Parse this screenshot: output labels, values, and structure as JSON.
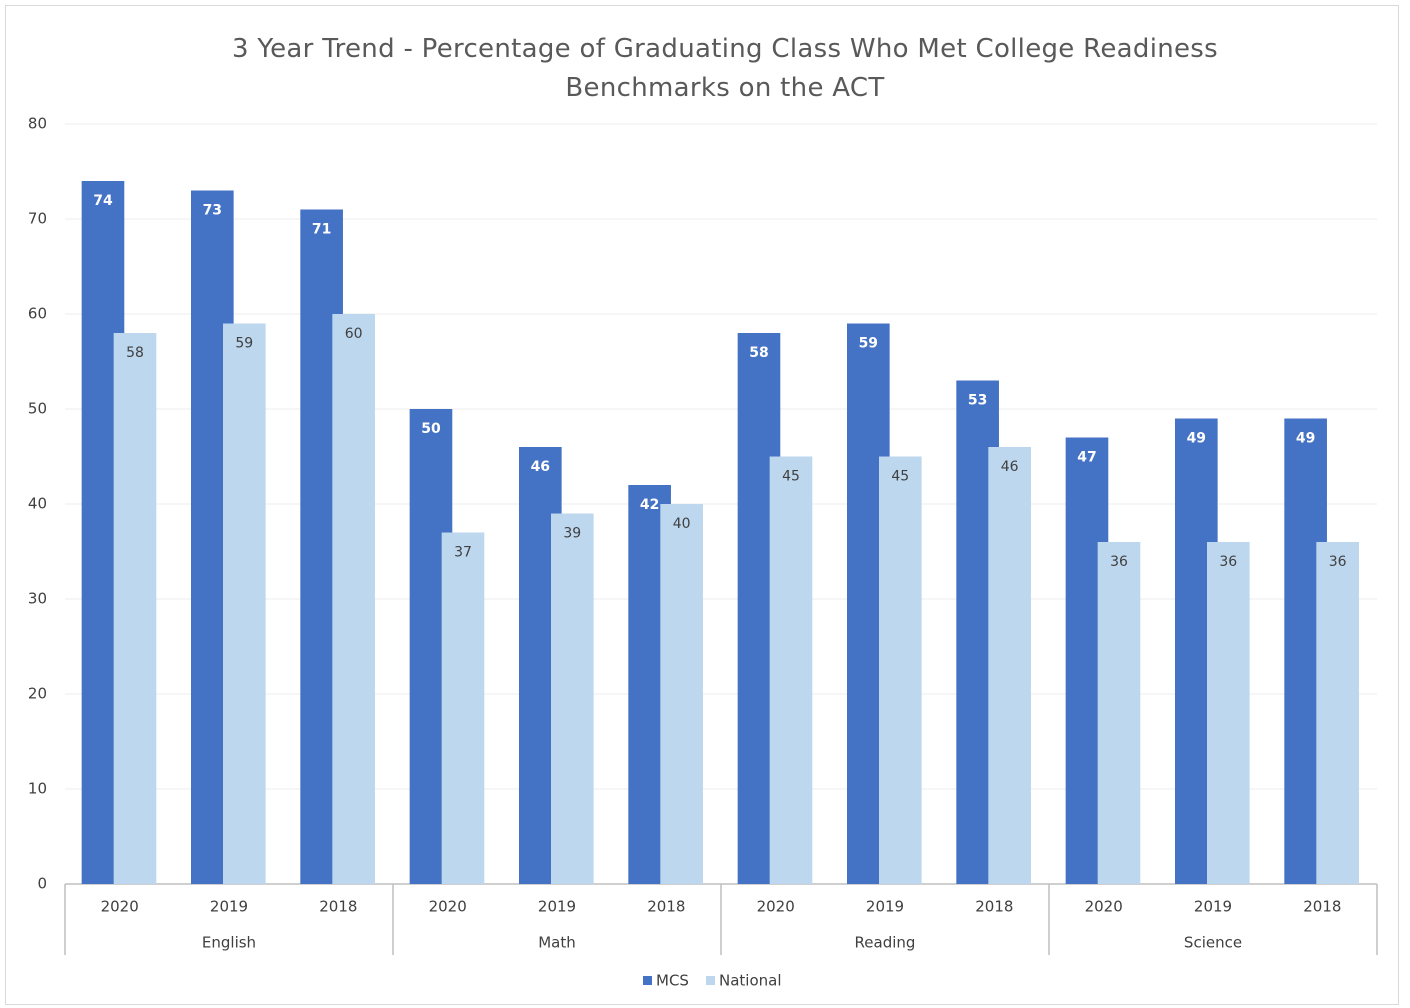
{
  "chart_data": {
    "type": "bar",
    "title": "3 Year Trend - Percentage of Graduating Class Who Met College Readiness Benchmarks on the ACT",
    "groups": [
      {
        "name": "English",
        "categories": [
          "2020",
          "2019",
          "2018"
        ]
      },
      {
        "name": "Math",
        "categories": [
          "2020",
          "2019",
          "2018"
        ]
      },
      {
        "name": "Reading",
        "categories": [
          "2020",
          "2019",
          "2018"
        ]
      },
      {
        "name": "Science",
        "categories": [
          "2020",
          "2019",
          "2018"
        ]
      }
    ],
    "series": [
      {
        "name": "MCS",
        "color": "#4472c4",
        "values": [
          74,
          73,
          71,
          50,
          46,
          42,
          58,
          59,
          53,
          47,
          49,
          49
        ]
      },
      {
        "name": "National",
        "color": "#bdd7ee",
        "values": [
          58,
          59,
          60,
          37,
          39,
          40,
          45,
          45,
          46,
          36,
          36,
          36
        ]
      }
    ],
    "ylim": [
      0,
      80
    ],
    "yticks": [
      0,
      10,
      20,
      30,
      40,
      50,
      60,
      70,
      80
    ],
    "grid": true,
    "legend": "bottom"
  }
}
